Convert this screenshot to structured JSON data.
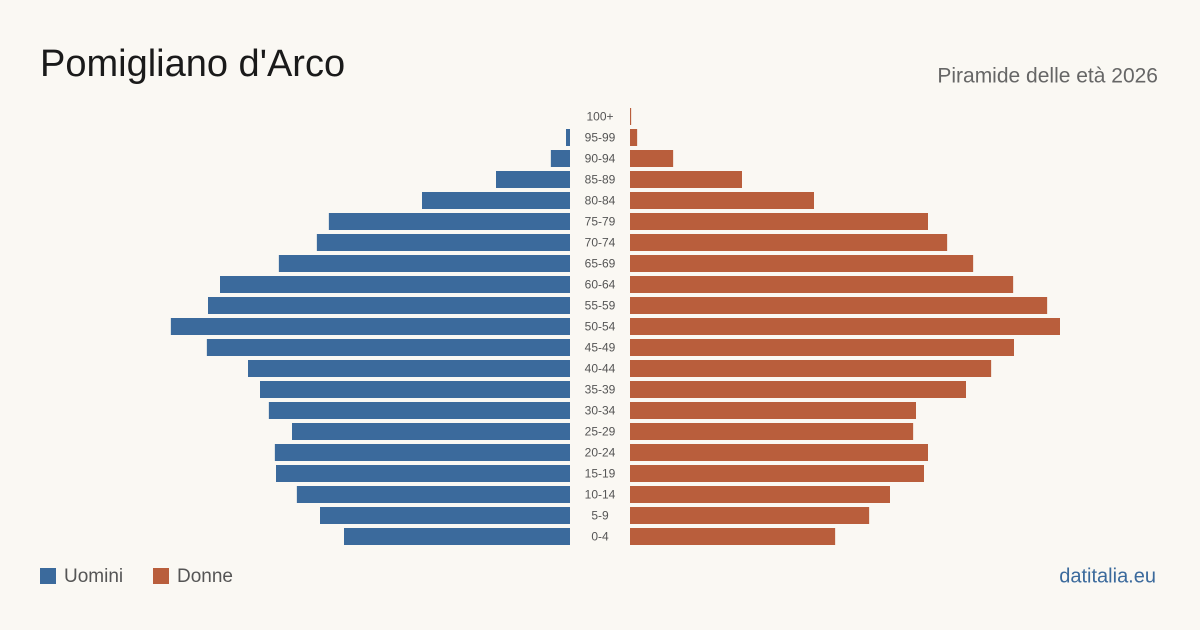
{
  "chart_data": {
    "type": "pyramid",
    "title": "Pomigliano d'Arco",
    "subtitle": "Piramide delle età 2026",
    "source": "datitalia.eu",
    "categories": [
      "100+",
      "95-99",
      "90-94",
      "85-89",
      "80-84",
      "75-79",
      "70-74",
      "65-69",
      "60-64",
      "55-59",
      "50-54",
      "45-49",
      "40-44",
      "35-39",
      "30-34",
      "25-29",
      "20-24",
      "15-19",
      "10-14",
      "5-9",
      "0-4"
    ],
    "series": [
      {
        "name": "Uomini",
        "color": "#3b6a9c",
        "values": [
          0,
          14,
          67,
          259,
          518,
          844,
          886,
          1019,
          1225,
          1267,
          1397,
          1271,
          1127,
          1085,
          1054,
          973,
          1033,
          1029,
          956,
          875,
          791
        ]
      },
      {
        "name": "Donne",
        "color": "#b95e3c",
        "values": [
          4,
          25,
          151,
          392,
          644,
          1043,
          1110,
          1201,
          1341,
          1460,
          1505,
          1344,
          1264,
          1176,
          1001,
          991,
          1043,
          1029,
          910,
          837,
          718
        ]
      }
    ]
  }
}
